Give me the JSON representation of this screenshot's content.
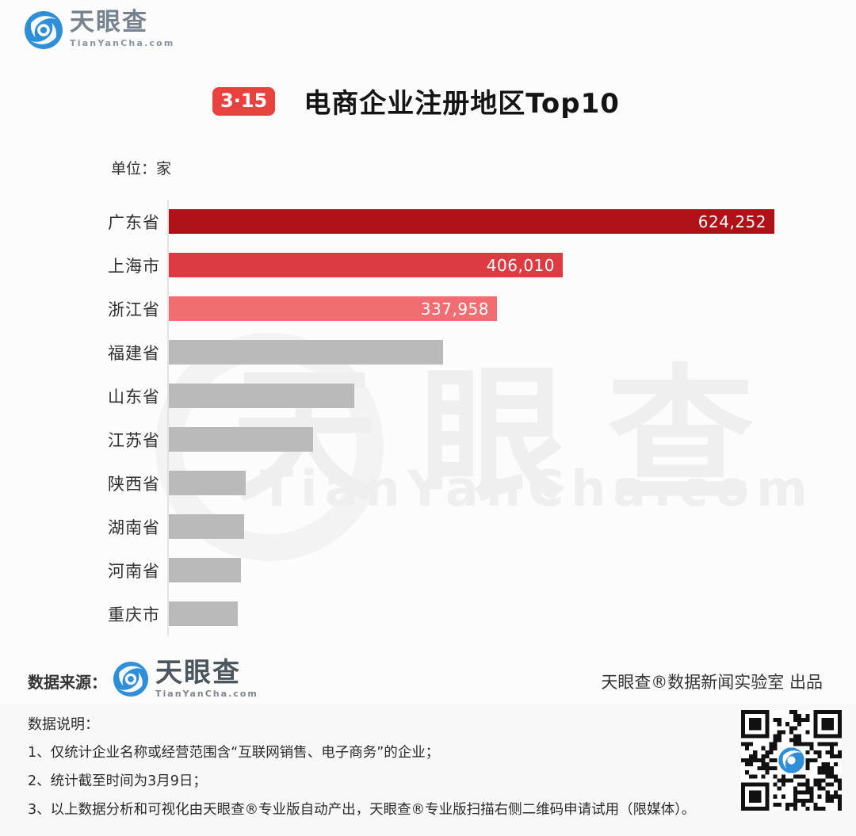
{
  "header": {
    "badge": "3·15",
    "title": "电商企业注册地区Top10"
  },
  "brand": {
    "name": "天眼查",
    "domain": "TianYanCha.com"
  },
  "chart": {
    "unit_label": "单位：家"
  },
  "chart_data": {
    "type": "bar",
    "orientation": "horizontal",
    "title": "电商企业注册地区Top10",
    "unit": "家",
    "categories": [
      "广东省",
      "上海市",
      "浙江省",
      "福建省",
      "山东省",
      "江苏省",
      "陕西省",
      "湖南省",
      "河南省",
      "重庆市"
    ],
    "values": [
      624252,
      406010,
      337958,
      283000,
      191000,
      149000,
      79000,
      78000,
      74000,
      71000
    ],
    "value_labels": [
      "624,252",
      "406,010",
      "337,958",
      "",
      "",
      "",
      "",
      "",
      "",
      ""
    ],
    "bar_colors": [
      "#b01117",
      "#dc3b41",
      "#f06d71",
      "#bababa",
      "#bababa",
      "#bababa",
      "#bababa",
      "#bababa",
      "#bababa",
      "#bababa"
    ],
    "xlim": [
      0,
      624252
    ],
    "grid": false,
    "legend": false
  },
  "watermark": {
    "line1": "天眼查",
    "line2": "TianYanCha.com"
  },
  "footer": {
    "source_label": "数据来源：",
    "credit": "天眼查®数据新闻实验室 出品"
  },
  "notes": {
    "heading": "数据说明：",
    "items": [
      "1、仅统计企业名称或经营范围含“互联网销售、电子商务”的企业；",
      "2、统计截至时间为3月9日；",
      "3、以上数据分析和可视化由天眼查®专业版自动产出，天眼查®专业版扫描右侧二维码申请试用（限媒体）。"
    ]
  },
  "colors": {
    "accent_red": "#e8413e",
    "bar_dark_red": "#b01117",
    "bar_red": "#dc3b41",
    "bar_light_red": "#f06d71",
    "bar_gray": "#bababa",
    "logo_blue": "#2e8ed8"
  }
}
